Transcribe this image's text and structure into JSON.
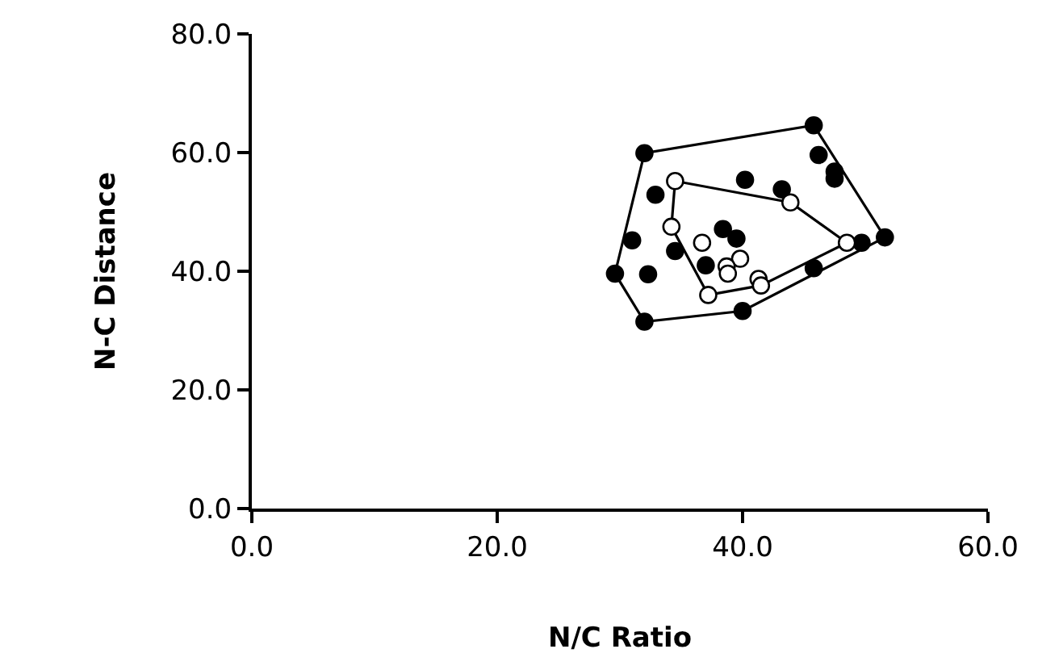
{
  "chart_data": {
    "type": "scatter",
    "xlabel": "N/C Ratio",
    "ylabel": "N-C Distance",
    "xlim": [
      0,
      60
    ],
    "ylim": [
      0,
      80
    ],
    "xticks": [
      {
        "value": 0,
        "label": "0.0"
      },
      {
        "value": 20,
        "label": "20.0"
      },
      {
        "value": 40,
        "label": "40.0"
      },
      {
        "value": 60,
        "label": "60.0"
      }
    ],
    "yticks": [
      {
        "value": 0,
        "label": "0.0"
      },
      {
        "value": 20,
        "label": "20.0"
      },
      {
        "value": 40,
        "label": "40.0"
      },
      {
        "value": 60,
        "label": "60.0"
      },
      {
        "value": 80,
        "label": "80.0"
      }
    ],
    "marker": "circle",
    "series": [
      {
        "type": "line",
        "color": "#000000",
        "marker": "none",
        "x": [
          29.6,
          32.0,
          45.8,
          51.6
        ],
        "values": [
          39.6,
          59.9,
          64.6,
          45.7
        ]
      },
      {
        "type": "line",
        "color": "#000000",
        "marker": "none",
        "x": [
          29.6,
          32.0,
          40.0,
          51.6
        ],
        "values": [
          39.6,
          31.5,
          33.3,
          45.7
        ]
      },
      {
        "type": "line",
        "color": "#000000",
        "marker": "none",
        "x": [
          34.2,
          34.5,
          43.9,
          48.5
        ],
        "values": [
          47.5,
          55.2,
          51.6,
          44.8
        ]
      },
      {
        "type": "line",
        "color": "#000000",
        "marker": "none",
        "x": [
          34.2,
          37.2,
          41.5,
          48.5
        ],
        "values": [
          47.5,
          36.0,
          37.6,
          44.8
        ]
      },
      {
        "color": "#000000",
        "x": [
          32.0,
          45.8,
          46.2,
          47.5,
          47.5,
          51.6,
          49.7,
          45.8,
          40.0,
          32.0,
          29.6,
          31.0,
          32.9,
          32.3,
          34.5,
          37.0,
          38.4,
          39.5,
          40.2,
          43.2
        ],
        "values": [
          59.9,
          64.6,
          59.6,
          56.8,
          55.6,
          45.7,
          44.8,
          40.5,
          33.3,
          31.5,
          39.6,
          45.2,
          52.9,
          39.5,
          43.4,
          41.0,
          47.1,
          45.5,
          55.4,
          53.8
        ]
      },
      {
        "color": "#ffffff",
        "x": [
          34.5,
          34.2,
          36.7,
          39.8,
          38.7,
          38.8,
          37.2,
          41.3,
          41.5,
          43.9,
          48.5
        ],
        "values": [
          55.2,
          47.5,
          44.8,
          42.1,
          40.8,
          39.6,
          36.0,
          38.7,
          37.6,
          51.6,
          44.8
        ]
      }
    ]
  }
}
